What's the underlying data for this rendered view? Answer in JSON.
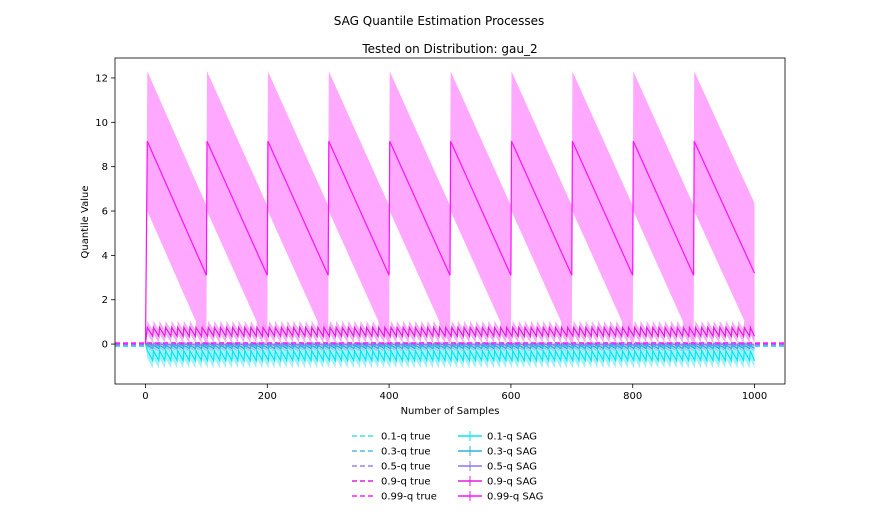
{
  "chart_data": {
    "type": "line",
    "suptitle": "SAG Quantile Estimation Processes",
    "title": "Tested on Distribution: gau_2",
    "xlabel": "Number of Samples",
    "ylabel": "Quantile Value",
    "xlim": [
      -50,
      1050
    ],
    "ylim": [
      -1.8,
      12.9
    ],
    "xticks": [
      0,
      200,
      400,
      600,
      800,
      1000
    ],
    "yticks": [
      0,
      2,
      4,
      6,
      8,
      10,
      12
    ],
    "grid": false,
    "legend_position": "bottom-center",
    "true_lines": [
      {
        "name": "0.1-q true",
        "value": -0.1,
        "color": "#40e0e0"
      },
      {
        "name": "0.3-q true",
        "value": -0.05,
        "color": "#50b8e8"
      },
      {
        "name": "0.5-q true",
        "value": 0.0,
        "color": "#a080f0"
      },
      {
        "name": "0.9-q true",
        "value": 0.02,
        "color": "#e020e0"
      },
      {
        "name": "0.99-q true",
        "value": 0.05,
        "color": "#ff20ff"
      }
    ],
    "series": [
      {
        "name": "0.1-q SAG",
        "color": "#00e8f0",
        "band_color": "#8ff0f8",
        "period": 10,
        "peak": -0.3,
        "trough": -0.75,
        "band": 0.35
      },
      {
        "name": "0.3-q SAG",
        "color": "#30b0e0",
        "band_color": "#90d0f0",
        "period": 10,
        "peak": -0.05,
        "trough": -0.2,
        "band": 0.15
      },
      {
        "name": "0.5-q SAG",
        "color": "#8878f0",
        "band_color": "#c0b8f8",
        "period": 10,
        "peak": 0.02,
        "trough": -0.05,
        "band": 0.1
      },
      {
        "name": "0.9-q SAG",
        "color": "#e020e0",
        "band_color": "#f0a0f0",
        "period": 10,
        "peak": 0.75,
        "trough": 0.35,
        "band": 0.3
      },
      {
        "name": "0.99-q SAG",
        "color": "#ff10ff",
        "band_color": "#ff99ff",
        "period": 100,
        "peak": 9.15,
        "trough": 3.1,
        "band": 3.15,
        "x": [
          0,
          3,
          100,
          101,
          200,
          201,
          300,
          301,
          400,
          401,
          500,
          501,
          600,
          601,
          700,
          701,
          800,
          801,
          900,
          901,
          1000
        ],
        "values": [
          0.0,
          9.15,
          3.1,
          9.15,
          3.1,
          9.15,
          3.1,
          9.15,
          3.1,
          9.15,
          3.1,
          9.15,
          3.1,
          9.15,
          3.1,
          9.15,
          3.1,
          9.15,
          3.1,
          9.15,
          3.2
        ]
      }
    ]
  }
}
